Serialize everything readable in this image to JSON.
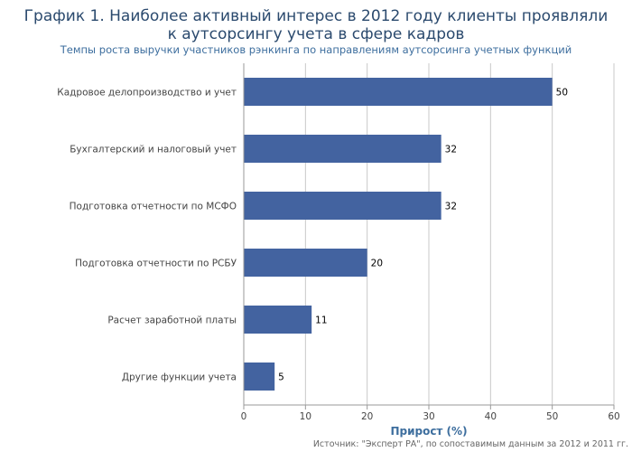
{
  "chart_data": {
    "type": "bar",
    "orientation": "horizontal",
    "title": "График 1. Наиболее активный интерес в 2012 году клиенты проявляли к аутсорсингу учета в сфере кадров",
    "title_lines": [
      "График 1. Наиболее активный интерес в 2012 году клиенты проявляли",
      "к аутсорсингу учета в сфере кадров"
    ],
    "subtitle": "Темпы роста выручки участников рэнкинга по направлениям аутсорсинга учетных функций",
    "xlabel": "Прирост (%)",
    "ylabel": "",
    "categories": [
      "Кадровое делопроизводство и учет",
      "Бухгалтерский и налоговый учет",
      "Подготовка отчетности по МСФО",
      "Подготовка отчетности по РСБУ",
      "Расчет заработной платы",
      "Другие функции учета"
    ],
    "values": [
      50,
      32,
      32,
      20,
      11,
      5
    ],
    "xlim": [
      0,
      60
    ],
    "xticks": [
      0,
      10,
      20,
      30,
      40,
      50,
      60
    ],
    "grid": "vertical",
    "bar_color": "#4363a0",
    "source": "Источник: \"Эксперт РА\", по сопоставимым данным за 2012 и 2011 гг."
  }
}
